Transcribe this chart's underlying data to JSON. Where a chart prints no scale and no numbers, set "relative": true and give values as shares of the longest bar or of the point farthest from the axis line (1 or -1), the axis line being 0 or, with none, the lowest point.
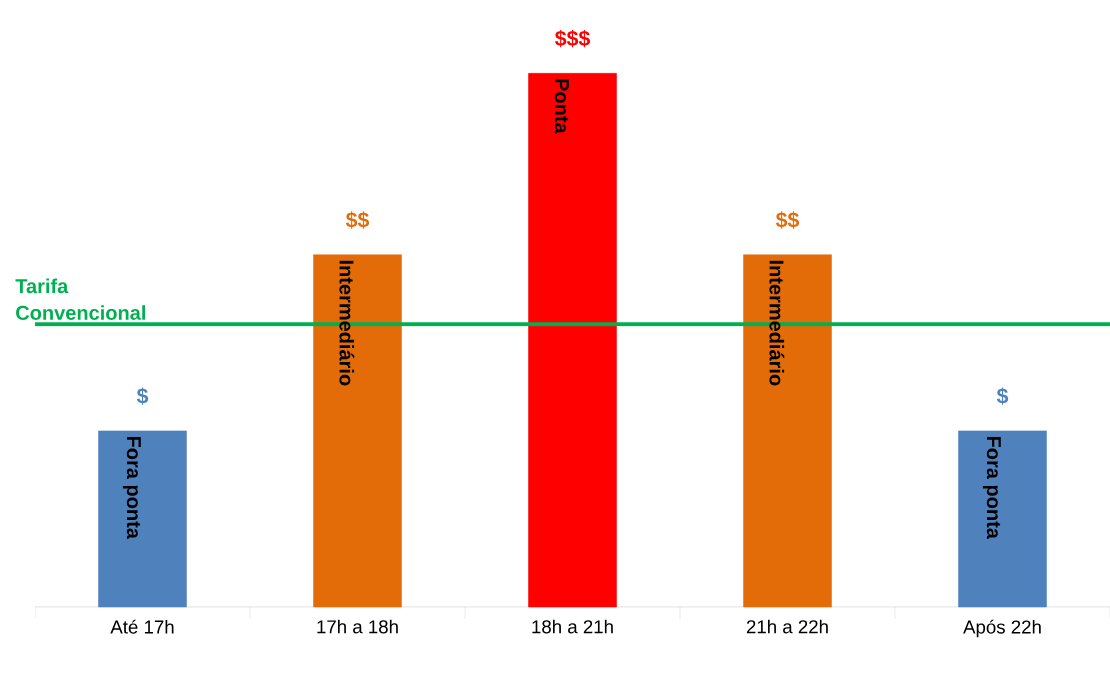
{
  "chart_data": {
    "type": "bar",
    "relative": true,
    "categories": [
      "Até 17h",
      "17h a 18h",
      "18h a 21h",
      "21h a 22h",
      "Após 22h"
    ],
    "values": [
      0.33,
      0.66,
      1,
      0.66,
      0.33
    ],
    "colors": [
      "#4f81bd",
      "#e36c09",
      "#ff0000",
      "#e36c09",
      "#4f81bd"
    ],
    "annotations": [
      {
        "text": "$",
        "x": "Até 17h",
        "y": 0.33
      },
      {
        "text": "$$",
        "x": "17h a 18h",
        "y": 0.66
      },
      {
        "text": "$$$",
        "x": "18h a 21h",
        "y": 1
      },
      {
        "text": "$$",
        "x": "21h a 22h",
        "y": 0.66
      },
      {
        "text": "$",
        "x": "Após 22h",
        "y": 0.33
      },
      {
        "text": "Fora ponta",
        "x": "Até 17h",
        "y": 0.33
      },
      {
        "text": "Intermediário",
        "x": "17h a 18h",
        "y": 0.66
      },
      {
        "text": "Ponta",
        "x": "18h a 21h",
        "y": 1
      },
      {
        "text": "Intermediário",
        "x": "21h a 22h",
        "y": 0.66
      },
      {
        "text": "Fora ponta",
        "x": "Após 22h",
        "y": 0.33
      }
    ],
    "ref_lines": [
      {
        "axis": "y",
        "value": 0.53,
        "label": "Tarifa Convencional",
        "color": "#00b050"
      }
    ]
  }
}
